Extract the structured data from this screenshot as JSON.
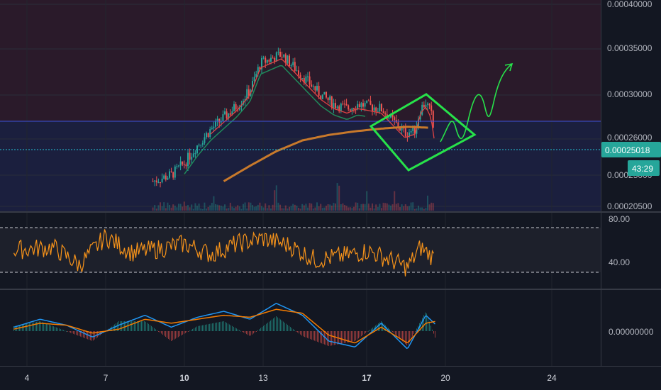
{
  "colors": {
    "background": "#131722",
    "upper_zone": "#2a1a2a",
    "lower_zone": "#1b1f3e",
    "candle_up": "#26a69a",
    "candle_down": "#ef5350",
    "ma_fast": "#1f8a5b",
    "ma_mid": "#e04343",
    "ma_slow": "#c8792b",
    "rsi_line": "#f7931a",
    "macd_line": "#2196f3",
    "signal_line": "#f57c00",
    "resistance_line": "#3f51d8",
    "price_line": "#26c6da",
    "drawing": "#27e24a",
    "price_badge": "#26a69a"
  },
  "price_axis": {
    "ticks": [
      "0.00040000",
      "0.00035000",
      "0.00030000",
      "0.00026000",
      "0.00025000",
      "0.00020500"
    ],
    "current_price": "0.00025018",
    "countdown": "43:29"
  },
  "rsi_axis": {
    "ticks": [
      "80.00",
      "40.00"
    ]
  },
  "macd_axis": {
    "ticks": [
      "0.00000000"
    ]
  },
  "time_axis": {
    "labels": [
      {
        "text": "4",
        "bold": false
      },
      {
        "text": "7",
        "bold": false
      },
      {
        "text": "10",
        "bold": true
      },
      {
        "text": "13",
        "bold": false
      },
      {
        "text": "17",
        "bold": true
      },
      {
        "text": "20",
        "bold": false
      },
      {
        "text": "24",
        "bold": false
      }
    ]
  },
  "chart_data": {
    "type": "line",
    "price": {
      "x": [
        8.8,
        9.5,
        10.0,
        10.5,
        11.0,
        11.5,
        12.0,
        12.5,
        12.9,
        13.3,
        13.7,
        14.2,
        14.7,
        15.2,
        15.7,
        16.2,
        16.6,
        17.0,
        17.5,
        18.0,
        18.4,
        18.8,
        19.0,
        19.2,
        19.4,
        19.55
      ],
      "close": [
        0.000205,
        0.000212,
        0.000225,
        0.000245,
        0.000262,
        0.000275,
        0.000288,
        0.000305,
        0.000335,
        0.00034,
        0.000345,
        0.00033,
        0.000315,
        0.0003,
        0.00029,
        0.000285,
        0.00029,
        0.000288,
        0.000285,
        0.00027,
        0.000258,
        0.000262,
        0.000285,
        0.000292,
        0.00028,
        0.00025
      ]
    },
    "moving_average_slow": {
      "x": [
        11.5,
        12.5,
        13.5,
        14.5,
        15.5,
        16.5,
        17.5,
        18.5,
        19.3
      ],
      "values": [
        0.000205,
        0.000222,
        0.000238,
        0.00025,
        0.000256,
        0.00026,
        0.000263,
        0.000265,
        0.000264
      ]
    },
    "rsi": {
      "x": [
        3.5,
        5.0,
        6.0,
        7.0,
        8.0,
        9.0,
        10.0,
        11.0,
        12.0,
        13.0,
        14.0,
        15.0,
        16.0,
        17.0,
        18.0,
        18.5,
        19.0,
        19.5
      ],
      "values": [
        55,
        58,
        38,
        70,
        52,
        56,
        62,
        50,
        62,
        68,
        60,
        44,
        48,
        54,
        42,
        35,
        58,
        46
      ],
      "levels": [
        80,
        30
      ]
    },
    "macd": {
      "x": [
        3.5,
        4.5,
        5.5,
        6.5,
        7.5,
        8.5,
        9.5,
        10.5,
        11.5,
        12.5,
        13.5,
        14.5,
        15.5,
        16.5,
        17.5,
        18.5,
        19.2,
        19.6
      ],
      "macd": [
        0.2,
        0.6,
        0.3,
        -0.3,
        0.3,
        0.8,
        0.2,
        0.7,
        1.0,
        0.6,
        1.4,
        0.8,
        -0.5,
        -0.8,
        0.4,
        -0.9,
        0.8,
        0.3
      ],
      "signal": [
        0.1,
        0.4,
        0.3,
        -0.1,
        0.1,
        0.6,
        0.4,
        0.6,
        0.8,
        0.7,
        1.1,
        0.9,
        -0.2,
        -0.6,
        0.2,
        -0.6,
        0.4,
        0.5
      ]
    }
  }
}
